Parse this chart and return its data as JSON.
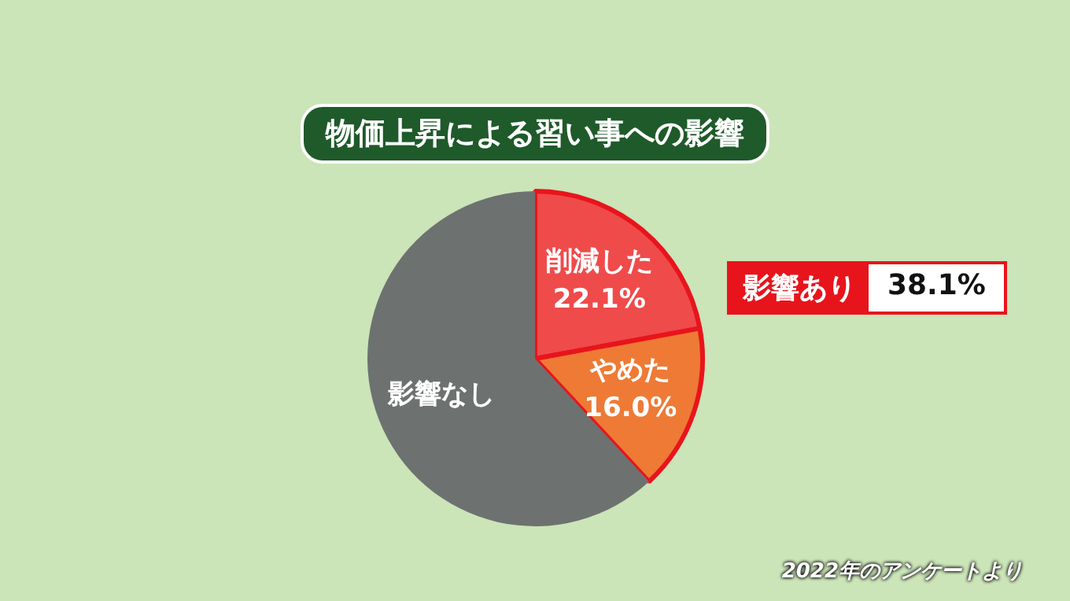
{
  "chart_data": {
    "type": "pie",
    "title": "物価上昇による習い事への影響",
    "categories": [
      "削減した",
      "やめた",
      "影響なし"
    ],
    "values": [
      22.1,
      16.0,
      61.9
    ],
    "value_labels": [
      "22.1%",
      "16.0%",
      null
    ],
    "colors": [
      "#ef4b4b",
      "#ee7a35",
      "#6d7271"
    ],
    "annotations": [
      "影響あり",
      "38.1%",
      "2022年のアンケートより"
    ],
    "legend": false
  }
}
